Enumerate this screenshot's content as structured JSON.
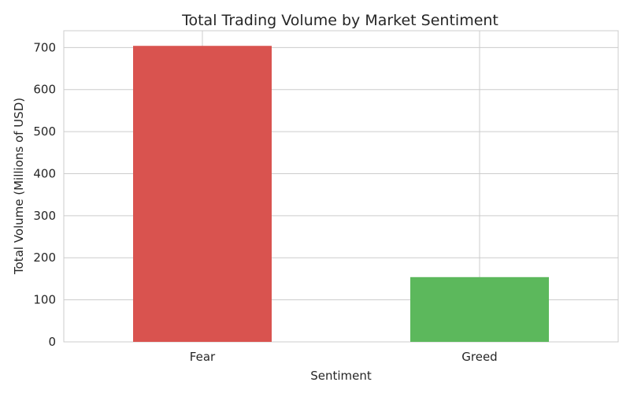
{
  "chart_data": {
    "type": "bar",
    "title": "Total Trading Volume by Market Sentiment",
    "xlabel": "Sentiment",
    "ylabel": "Total Volume (Millions of USD)",
    "categories": [
      "Fear",
      "Greed"
    ],
    "values": [
      704,
      154
    ],
    "colors": [
      "#d9534f",
      "#5cb85c"
    ],
    "ylim": [
      0,
      740
    ],
    "yticks": [
      0,
      100,
      200,
      300,
      400,
      500,
      600,
      700
    ],
    "grid": true,
    "legend": "none"
  }
}
